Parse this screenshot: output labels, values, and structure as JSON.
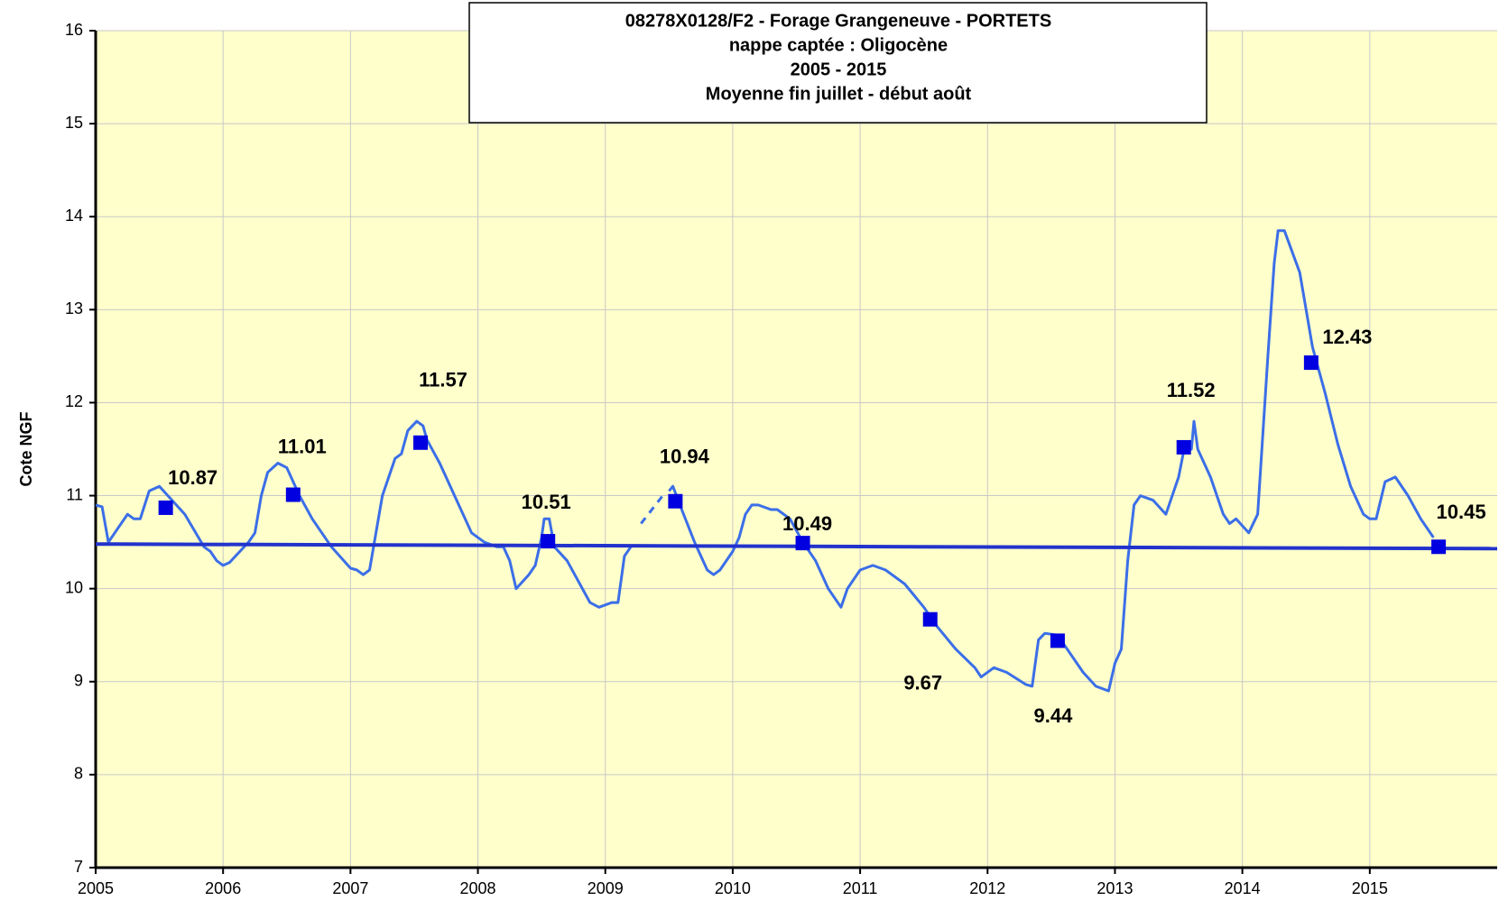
{
  "chart_data": {
    "type": "line",
    "title": [
      "08278X0128/F2 - Forage Grangeneuve - PORTETS",
      "nappe captée : Oligocène",
      "2005 - 2015",
      "Moyenne fin juillet - début août"
    ],
    "y_label": "Cote NGF",
    "xlim": [
      2005,
      2016
    ],
    "xticks": [
      2005,
      2006,
      2007,
      2008,
      2009,
      2010,
      2011,
      2012,
      2013,
      2014,
      2015
    ],
    "ylim": [
      7,
      16
    ],
    "yticks": [
      7,
      8,
      9,
      10,
      11,
      12,
      13,
      14,
      15,
      16
    ],
    "grid": true,
    "background": "#ffffcc",
    "series": [
      {
        "style": "line",
        "color": "#3b6ee8",
        "x": [
          2005.0,
          2005.05,
          2005.1,
          2005.15,
          2005.25,
          2005.3,
          2005.35,
          2005.42,
          2005.5,
          2005.6,
          2005.7,
          2005.85,
          2005.9,
          2005.95,
          2006.0,
          2006.05,
          2006.2,
          2006.25,
          2006.3,
          2006.35,
          2006.43,
          2006.5,
          2006.6,
          2006.7,
          2006.85,
          2007.0,
          2007.05,
          2007.1,
          2007.15,
          2007.2,
          2007.25,
          2007.35,
          2007.4,
          2007.45,
          2007.52,
          2007.57,
          2007.6,
          2007.7,
          2007.8,
          2007.95,
          2008.05,
          2008.15,
          2008.2,
          2008.25,
          2008.3,
          2008.4,
          2008.45,
          2008.5,
          2008.52,
          2008.56,
          2008.6,
          2008.7,
          2008.8,
          2008.88,
          2008.95,
          2009.05,
          2009.1,
          2009.15,
          2009.2,
          2009.3,
          2009.5,
          2009.53,
          2009.6,
          2009.7,
          2009.8,
          2009.85,
          2009.9,
          2010.0,
          2010.05,
          2010.1,
          2010.15,
          2010.2,
          2010.3,
          2010.35,
          2010.45,
          2010.55,
          2010.65,
          2010.75,
          2010.85,
          2010.9,
          2011.0,
          2011.1,
          2011.2,
          2011.35,
          2011.5,
          2011.6,
          2011.75,
          2011.9,
          2011.95,
          2012.05,
          2012.15,
          2012.3,
          2012.35,
          2012.4,
          2012.45,
          2012.55,
          2012.65,
          2012.75,
          2012.85,
          2012.95,
          2013.0,
          2013.05,
          2013.1,
          2013.15,
          2013.2,
          2013.3,
          2013.4,
          2013.5,
          2013.55,
          2013.6,
          2013.62,
          2013.65,
          2013.75,
          2013.85,
          2013.9,
          2013.95,
          2014.05,
          2014.12,
          2014.2,
          2014.25,
          2014.28,
          2014.33,
          2014.45,
          2014.55,
          2014.65,
          2014.75,
          2014.85,
          2014.95,
          2015.0,
          2015.05,
          2015.12,
          2015.2,
          2015.3,
          2015.4,
          2015.5
        ],
        "values": [
          10.9,
          10.88,
          10.5,
          10.6,
          10.8,
          10.75,
          10.75,
          11.05,
          11.1,
          10.95,
          10.8,
          10.45,
          10.4,
          10.3,
          10.25,
          10.28,
          10.5,
          10.6,
          11.0,
          11.25,
          11.35,
          11.3,
          11.0,
          10.75,
          10.45,
          10.22,
          10.2,
          10.15,
          10.2,
          10.6,
          11.0,
          11.4,
          11.45,
          11.7,
          11.8,
          11.75,
          11.6,
          11.35,
          11.05,
          10.6,
          10.5,
          10.45,
          10.45,
          10.3,
          10.0,
          10.15,
          10.25,
          10.55,
          10.75,
          10.75,
          10.45,
          10.3,
          10.05,
          9.85,
          9.8,
          9.85,
          9.85,
          10.35,
          10.45,
          null,
          11.05,
          11.1,
          10.85,
          10.5,
          10.2,
          10.15,
          10.2,
          10.4,
          10.55,
          10.8,
          10.9,
          10.9,
          10.85,
          10.85,
          10.75,
          10.5,
          10.3,
          10.0,
          9.8,
          10.0,
          10.2,
          10.25,
          10.2,
          10.05,
          9.8,
          9.6,
          9.35,
          9.15,
          9.05,
          9.15,
          9.1,
          8.97,
          8.95,
          9.45,
          9.52,
          9.5,
          9.3,
          9.1,
          8.95,
          8.9,
          9.2,
          9.35,
          10.3,
          10.9,
          11.0,
          10.95,
          10.8,
          11.2,
          11.55,
          11.5,
          11.8,
          11.5,
          11.2,
          10.8,
          10.7,
          10.75,
          10.6,
          10.8,
          12.5,
          13.5,
          13.85,
          13.85,
          13.4,
          12.6,
          12.1,
          11.55,
          11.1,
          10.8,
          10.75,
          10.75,
          11.15,
          11.2,
          11.0,
          10.75,
          10.55
        ]
      },
      {
        "style": "dashed",
        "color": "#3b6ee8",
        "x": [
          2009.28,
          2009.45
        ],
        "values": [
          10.7,
          11.0
        ]
      },
      {
        "style": "trend",
        "color": "#2233cc",
        "x": [
          2005,
          2016
        ],
        "values": [
          10.48,
          10.43
        ]
      },
      {
        "style": "markers",
        "color": "#0000e0",
        "x": [
          2005.55,
          2006.55,
          2007.55,
          2008.55,
          2009.55,
          2010.55,
          2011.55,
          2012.55,
          2013.54,
          2014.54,
          2015.54
        ],
        "values": [
          10.87,
          11.01,
          11.57,
          10.51,
          10.94,
          10.49,
          9.67,
          9.44,
          11.52,
          12.43,
          10.45
        ]
      }
    ]
  }
}
